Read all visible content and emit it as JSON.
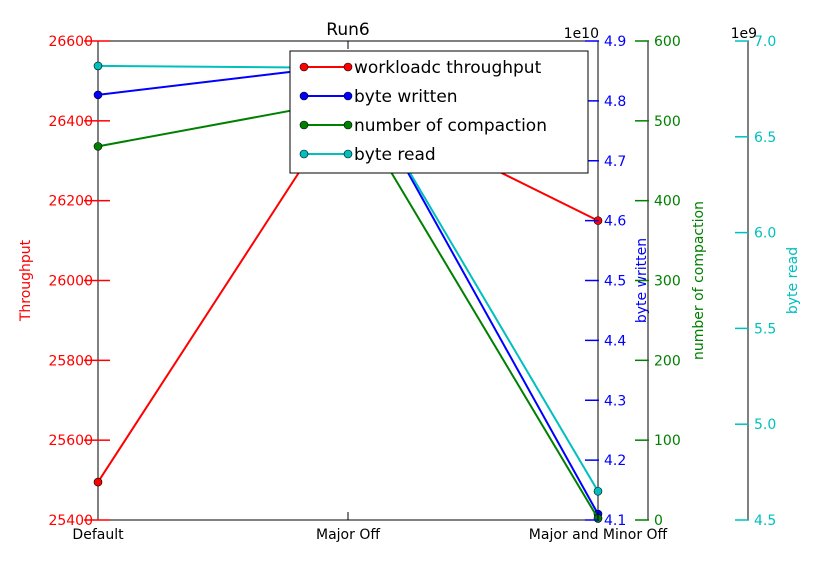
{
  "chart_data": {
    "type": "line",
    "title": "Run6",
    "categories": [
      "Default",
      "Major Off",
      "Major and Minor Off"
    ],
    "axes": {
      "throughput": {
        "label": "Throughput",
        "range": [
          25400,
          26600
        ],
        "ticks": [
          "25400",
          "25600",
          "25800",
          "26000",
          "26200",
          "26400",
          "26600"
        ],
        "color": "#ff0000"
      },
      "byte_written": {
        "label": "byte written",
        "range": [
          4.1,
          4.9
        ],
        "ticks": [
          "4.1",
          "4.2",
          "4.3",
          "4.4",
          "4.5",
          "4.6",
          "4.7",
          "4.8",
          "4.9"
        ],
        "color": "#0000ff",
        "offset_text": "1e10"
      },
      "compaction": {
        "label": "number of compaction",
        "range": [
          0,
          600
        ],
        "ticks": [
          "0",
          "100",
          "200",
          "300",
          "400",
          "500",
          "600"
        ],
        "color": "#008000"
      },
      "byte_read": {
        "label": "byte read",
        "range": [
          4.5,
          7.0
        ],
        "ticks": [
          "4.5",
          "5.0",
          "5.5",
          "6.0",
          "6.5",
          "7.0"
        ],
        "color": "#00bfbf",
        "offset_text": "1e9"
      }
    },
    "series": [
      {
        "name": "workloadc throughput",
        "axis": "throughput",
        "color": "#ff0000",
        "values": [
          25495,
          26460,
          26150
        ]
      },
      {
        "name": "byte written",
        "axis": "byte_written",
        "color": "#0000ff",
        "values": [
          4.81,
          4.86,
          4.11
        ]
      },
      {
        "name": "number of compaction",
        "axis": "compaction",
        "color": "#008000",
        "values": [
          468,
          526,
          2
        ]
      },
      {
        "name": "byte read",
        "axis": "byte_read",
        "color": "#00bfbf",
        "values": [
          6.87,
          6.86,
          4.65
        ]
      }
    ],
    "legend_position": "top-right"
  }
}
